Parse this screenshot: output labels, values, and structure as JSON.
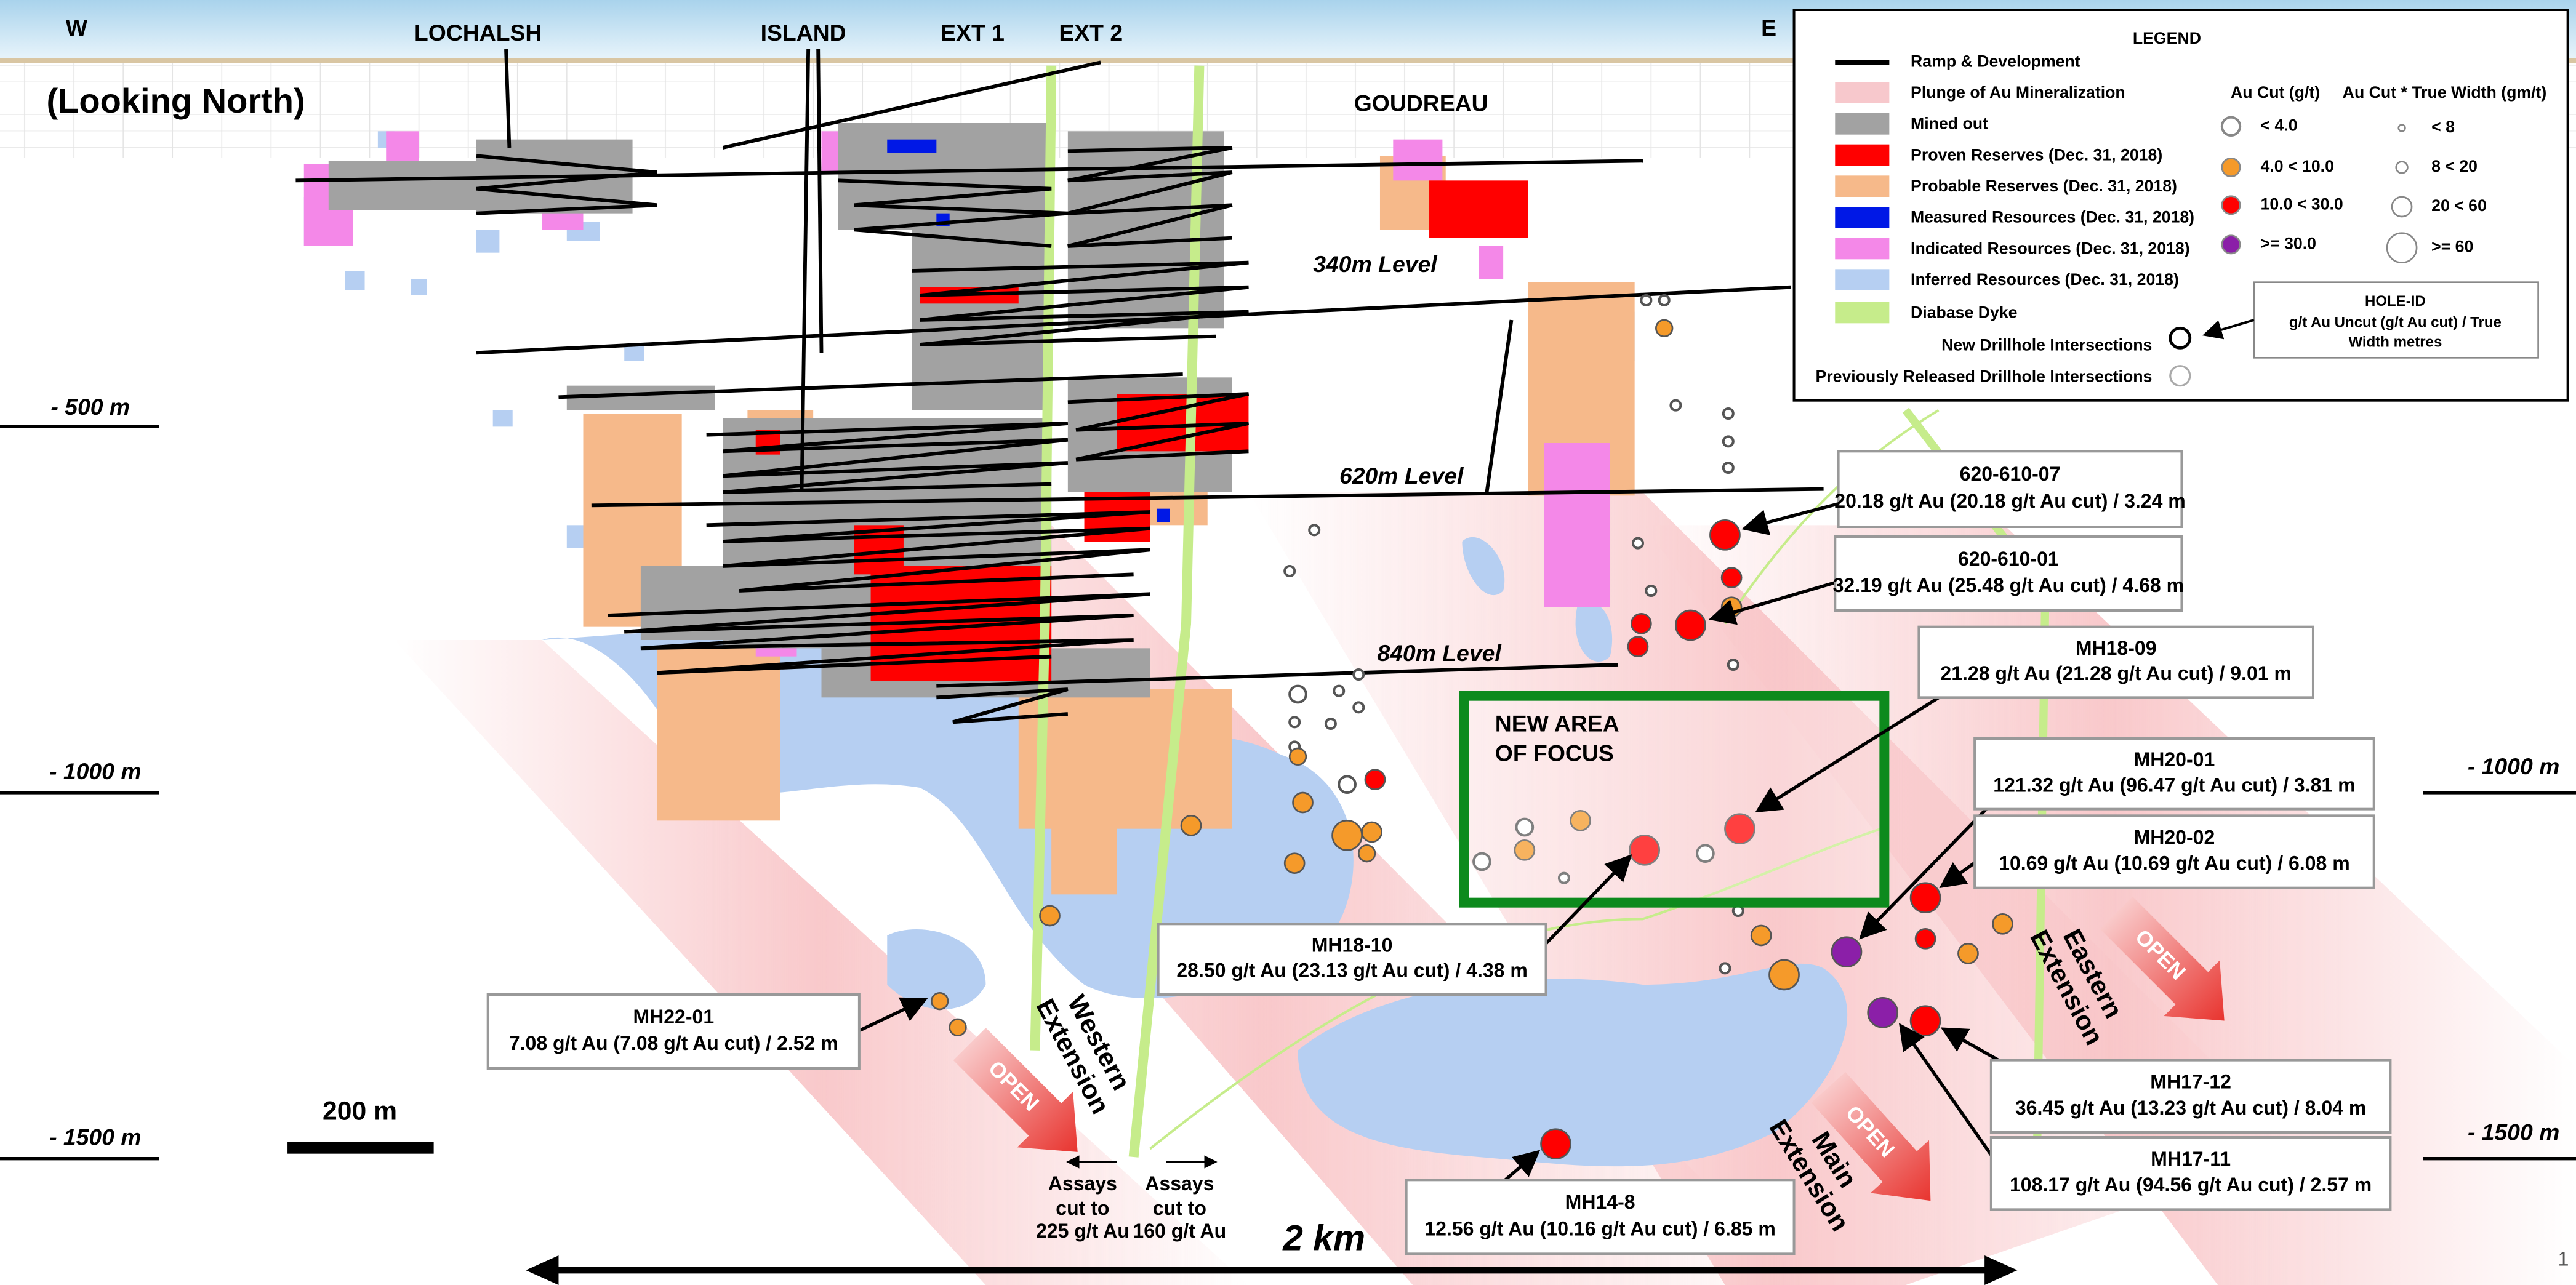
{
  "header": {
    "west": "W",
    "east": "E",
    "view": "(Looking North)"
  },
  "zones": [
    "LOCHALSH",
    "ISLAND",
    "EXT 1",
    "EXT 2",
    "GOUDREAU"
  ],
  "levels": [
    "340m Level",
    "620m Level",
    "840m Level"
  ],
  "depths_left": [
    "- 500 m",
    "- 1000 m",
    "- 1500 m"
  ],
  "depths_right": [
    "- 1000 m",
    "- 1500 m"
  ],
  "scale": {
    "bar": "200 m",
    "width": "2 km"
  },
  "legend": {
    "title": "LEGEND",
    "items": [
      "Ramp & Development",
      "Plunge of Au Mineralization",
      "Mined out",
      "Proven Reserves (Dec. 31, 2018)",
      "Probable Reserves (Dec. 31, 2018)",
      "Measured Resources (Dec. 31, 2018)",
      "Indicated Resources (Dec. 31, 2018)",
      "Inferred Resources (Dec. 31, 2018)",
      "Diabase Dyke"
    ],
    "au_cut_title": "Au Cut (g/t)",
    "au_cut": [
      "< 4.0",
      "4.0 < 10.0",
      "10.0 < 30.0",
      ">= 30.0"
    ],
    "width_title": "Au Cut * True Width (gm/t)",
    "width": [
      "< 8",
      "8 < 20",
      "20 < 60",
      ">= 60"
    ],
    "hole_id": {
      "title": "HOLE-ID",
      "lines": [
        "g/t Au Uncut (g/t Au cut) / True",
        "Width metres"
      ]
    },
    "new": "New Drillhole Intersections",
    "previous": "Previously Released Drillhole Intersections"
  },
  "callouts": [
    {
      "id": "620-610-07",
      "text": "20.18 g/t Au (20.18 g/t Au cut) / 3.24 m"
    },
    {
      "id": "620-610-01",
      "text": "32.19 g/t Au (25.48 g/t Au cut) / 4.68 m"
    },
    {
      "id": "MH18-09",
      "text": "21.28 g/t Au (21.28 g/t Au cut) / 9.01 m"
    },
    {
      "id": "MH20-01",
      "text": "121.32 g/t Au (96.47 g/t Au cut) / 3.81 m"
    },
    {
      "id": "MH20-02",
      "text": "10.69 g/t Au (10.69 g/t Au cut) / 6.08 m"
    },
    {
      "id": "MH18-10",
      "text": "28.50 g/t Au (23.13 g/t Au cut) / 4.38 m"
    },
    {
      "id": "MH22-01",
      "text": "7.08 g/t Au (7.08 g/t Au cut) / 2.52 m"
    },
    {
      "id": "MH17-12",
      "text": "36.45 g/t Au (13.23 g/t Au cut) / 8.04 m"
    },
    {
      "id": "MH17-11",
      "text": "108.17 g/t Au (94.56 g/t Au cut) / 2.57 m"
    },
    {
      "id": "MH14-8",
      "text": "12.56 g/t Au (10.16 g/t Au cut) / 6.85 m"
    }
  ],
  "focus": [
    "NEW AREA",
    "OF FOCUS"
  ],
  "extensions": [
    [
      "Western",
      "Extension"
    ],
    [
      "Eastern",
      "Extension"
    ],
    [
      "Main",
      "Extension"
    ]
  ],
  "open": [
    "OPEN",
    "OPEN",
    "OPEN"
  ],
  "assays": [
    [
      "Assays",
      "cut to",
      "225 g/t Au"
    ],
    [
      "Assays",
      "cut to",
      "160 g/t Au"
    ]
  ],
  "page": "1"
}
